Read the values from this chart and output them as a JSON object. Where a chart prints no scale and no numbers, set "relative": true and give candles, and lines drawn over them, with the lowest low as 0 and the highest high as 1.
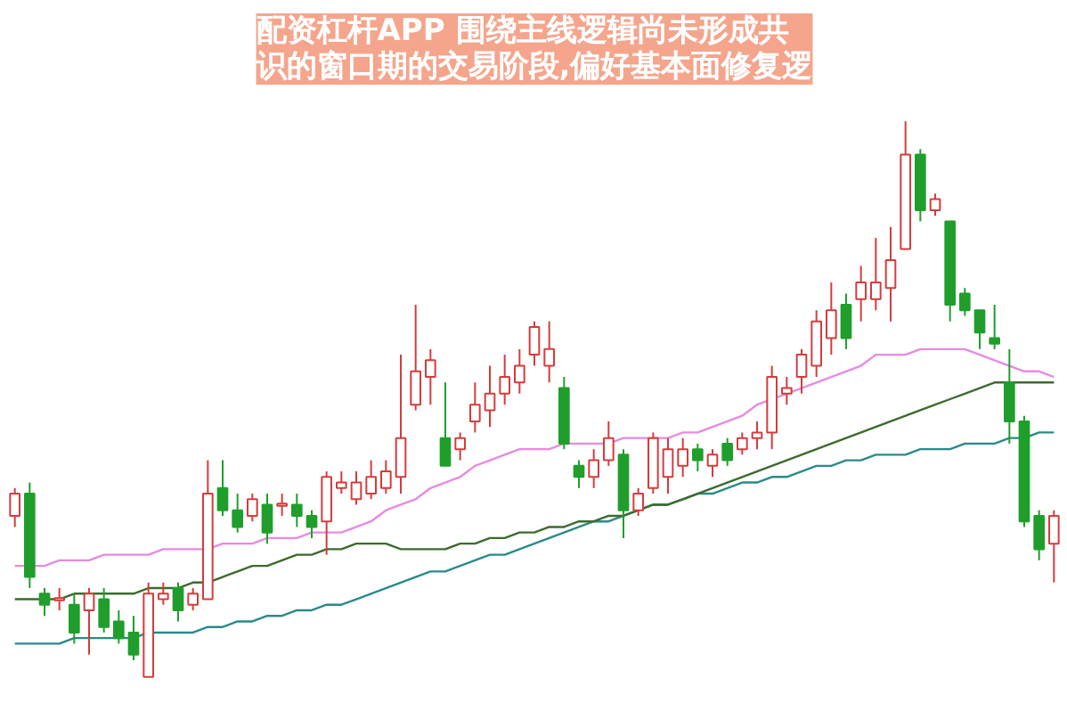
{
  "chart_data": {
    "type": "candlestick",
    "title": "配资杠杆APP 围绕主线逻辑尚未形成共识的窗口期的交易阶段,偏好基本面修复逻",
    "relative": true,
    "categories": [
      null,
      null,
      null,
      null,
      null,
      null,
      null,
      null,
      null,
      null,
      null,
      null,
      null,
      null,
      null,
      null,
      null,
      null,
      null,
      null,
      null,
      null,
      null,
      null,
      null,
      null,
      null,
      null,
      null,
      null,
      null,
      null,
      null,
      null,
      null,
      null,
      null,
      null,
      null,
      null,
      null,
      null,
      null,
      null,
      null,
      null,
      null,
      null,
      null,
      null,
      null,
      null,
      null,
      null,
      null,
      null,
      null,
      null,
      null,
      null,
      null,
      null,
      null,
      null,
      null,
      null,
      null,
      null,
      null,
      null,
      null
    ],
    "ohlc": [
      [
        0.29,
        0.34,
        0.27,
        0.33
      ],
      [
        0.33,
        0.35,
        0.16,
        0.18
      ],
      [
        0.15,
        0.16,
        0.11,
        0.13
      ],
      [
        0.14,
        0.16,
        0.12,
        0.14
      ],
      [
        0.13,
        0.15,
        0.06,
        0.08
      ],
      [
        0.12,
        0.16,
        0.04,
        0.15
      ],
      [
        0.14,
        0.16,
        0.08,
        0.09
      ],
      [
        0.1,
        0.12,
        0.06,
        0.07
      ],
      [
        0.08,
        0.11,
        0.03,
        0.04
      ],
      [
        0,
        0.17,
        0,
        0.15
      ],
      [
        0.14,
        0.17,
        0.13,
        0.15
      ],
      [
        0.16,
        0.17,
        0.1,
        0.12
      ],
      [
        0.13,
        0.16,
        0.12,
        0.15
      ],
      [
        0.14,
        0.39,
        0.14,
        0.33
      ],
      [
        0.34,
        0.39,
        0.29,
        0.3
      ],
      [
        0.3,
        0.33,
        0.26,
        0.27
      ],
      [
        0.29,
        0.33,
        0.28,
        0.32
      ],
      [
        0.31,
        0.33,
        0.24,
        0.26
      ],
      [
        0.31,
        0.33,
        0.29,
        0.31
      ],
      [
        0.31,
        0.33,
        0.27,
        0.29
      ],
      [
        0.29,
        0.3,
        0.25,
        0.27
      ],
      [
        0.28,
        0.37,
        0.22,
        0.36
      ],
      [
        0.34,
        0.37,
        0.33,
        0.35
      ],
      [
        0.32,
        0.37,
        0.31,
        0.35
      ],
      [
        0.33,
        0.39,
        0.32,
        0.36
      ],
      [
        0.34,
        0.39,
        0.33,
        0.37
      ],
      [
        0.36,
        0.58,
        0.33,
        0.43
      ],
      [
        0.49,
        0.67,
        0.48,
        0.55
      ],
      [
        0.54,
        0.59,
        0.49,
        0.57
      ],
      [
        0.43,
        0.53,
        0.38,
        0.38
      ],
      [
        0.41,
        0.44,
        0.39,
        0.43
      ],
      [
        0.46,
        0.53,
        0.44,
        0.49
      ],
      [
        0.48,
        0.56,
        0.45,
        0.51
      ],
      [
        0.51,
        0.58,
        0.49,
        0.54
      ],
      [
        0.53,
        0.59,
        0.51,
        0.56
      ],
      [
        0.58,
        0.64,
        0.56,
        0.63
      ],
      [
        0.56,
        0.64,
        0.53,
        0.59
      ],
      [
        0.52,
        0.54,
        0.41,
        0.42
      ],
      [
        0.38,
        0.39,
        0.34,
        0.36
      ],
      [
        0.36,
        0.41,
        0.34,
        0.39
      ],
      [
        0.39,
        0.46,
        0.38,
        0.43
      ],
      [
        0.4,
        0.41,
        0.25,
        0.3
      ],
      [
        0.3,
        0.34,
        0.29,
        0.33
      ],
      [
        0.34,
        0.44,
        0.33,
        0.43
      ],
      [
        0.36,
        0.43,
        0.33,
        0.41
      ],
      [
        0.38,
        0.43,
        0.36,
        0.41
      ],
      [
        0.41,
        0.42,
        0.37,
        0.39
      ],
      [
        0.38,
        0.41,
        0.36,
        0.4
      ],
      [
        0.42,
        0.43,
        0.38,
        0.39
      ],
      [
        0.41,
        0.44,
        0.4,
        0.43
      ],
      [
        0.43,
        0.46,
        0.41,
        0.44
      ],
      [
        0.44,
        0.56,
        0.41,
        0.54
      ],
      [
        0.51,
        0.54,
        0.49,
        0.52
      ],
      [
        0.54,
        0.59,
        0.51,
        0.58
      ],
      [
        0.56,
        0.66,
        0.54,
        0.64
      ],
      [
        0.61,
        0.71,
        0.58,
        0.66
      ],
      [
        0.67,
        0.69,
        0.59,
        0.61
      ],
      [
        0.68,
        0.74,
        0.64,
        0.71
      ],
      [
        0.68,
        0.79,
        0.66,
        0.71
      ],
      [
        0.7,
        0.81,
        0.64,
        0.75
      ],
      [
        0.77,
        1,
        0.77,
        0.94
      ],
      [
        0.94,
        0.95,
        0.82,
        0.84
      ],
      [
        0.84,
        0.87,
        0.83,
        0.86
      ],
      [
        0.82,
        0.82,
        0.64,
        0.67
      ],
      [
        0.69,
        0.7,
        0.65,
        0.66
      ],
      [
        0.66,
        0.66,
        0.59,
        0.62
      ],
      [
        0.61,
        0.67,
        0.59,
        0.6
      ],
      [
        0.53,
        0.59,
        0.42,
        0.46
      ],
      [
        0.46,
        0.47,
        0.27,
        0.28
      ],
      [
        0.29,
        0.3,
        0.21,
        0.23
      ],
      [
        0.24,
        0.3,
        0.17,
        0.29
      ]
    ],
    "colors": [
      "#d43c3c",
      "#1f9e2c",
      "#1f9e2c",
      "#d43c3c",
      "#1f9e2c",
      "#d43c3c",
      "#1f9e2c",
      "#1f9e2c",
      "#1f9e2c",
      "#d43c3c",
      "#d43c3c",
      "#1f9e2c",
      "#d43c3c",
      "#d43c3c",
      "#1f9e2c",
      "#1f9e2c",
      "#d43c3c",
      "#1f9e2c",
      "#d43c3c",
      "#1f9e2c",
      "#1f9e2c",
      "#d43c3c",
      "#d43c3c",
      "#d43c3c",
      "#d43c3c",
      "#d43c3c",
      "#d43c3c",
      "#d43c3c",
      "#d43c3c",
      "#1f9e2c",
      "#d43c3c",
      "#d43c3c",
      "#d43c3c",
      "#d43c3c",
      "#d43c3c",
      "#d43c3c",
      "#d43c3c",
      "#1f9e2c",
      "#1f9e2c",
      "#d43c3c",
      "#d43c3c",
      "#1f9e2c",
      "#d43c3c",
      "#d43c3c",
      "#d43c3c",
      "#d43c3c",
      "#1f9e2c",
      "#d43c3c",
      "#1f9e2c",
      "#d43c3c",
      "#d43c3c",
      "#d43c3c",
      "#d43c3c",
      "#d43c3c",
      "#d43c3c",
      "#d43c3c",
      "#1f9e2c",
      "#d43c3c",
      "#d43c3c",
      "#d43c3c",
      "#d43c3c",
      "#1f9e2c",
      "#d43c3c",
      "#1f9e2c",
      "#1f9e2c",
      "#1f9e2c",
      "#1f9e2c",
      "#1f9e2c",
      "#1f9e2c",
      "#1f9e2c",
      "#d43c3c"
    ],
    "series": [
      {
        "type": "line",
        "color": "#2a8a8a",
        "values": [
          0.06,
          0.06,
          0.06,
          0.06,
          0.07,
          0.07,
          0.07,
          0.07,
          0.07,
          0.08,
          0.08,
          0.08,
          0.08,
          0.09,
          0.09,
          0.1,
          0.1,
          0.11,
          0.11,
          0.12,
          0.12,
          0.13,
          0.13,
          0.14,
          0.15,
          0.16,
          0.17,
          0.18,
          0.19,
          0.19,
          0.2,
          0.21,
          0.22,
          0.22,
          0.23,
          0.24,
          0.25,
          0.26,
          0.27,
          0.28,
          0.28,
          0.29,
          0.3,
          0.31,
          0.31,
          0.32,
          0.33,
          0.33,
          0.34,
          0.35,
          0.35,
          0.36,
          0.36,
          0.37,
          0.38,
          0.38,
          0.39,
          0.39,
          0.4,
          0.4,
          0.4,
          0.41,
          0.41,
          0.41,
          0.42,
          0.42,
          0.42,
          0.43,
          0.43,
          0.44,
          0.44
        ]
      },
      {
        "type": "line",
        "color": "#e88ae0",
        "values": [
          0.2,
          0.2,
          0.2,
          0.21,
          0.21,
          0.21,
          0.22,
          0.22,
          0.22,
          0.22,
          0.23,
          0.23,
          0.23,
          0.23,
          0.24,
          0.24,
          0.24,
          0.25,
          0.25,
          0.25,
          0.26,
          0.26,
          0.26,
          0.27,
          0.28,
          0.3,
          0.31,
          0.32,
          0.34,
          0.35,
          0.36,
          0.38,
          0.39,
          0.4,
          0.41,
          0.41,
          0.41,
          0.42,
          0.42,
          0.42,
          0.42,
          0.43,
          0.43,
          0.43,
          0.43,
          0.44,
          0.44,
          0.45,
          0.46,
          0.47,
          0.49,
          0.5,
          0.51,
          0.52,
          0.53,
          0.54,
          0.55,
          0.56,
          0.58,
          0.58,
          0.58,
          0.59,
          0.59,
          0.59,
          0.59,
          0.58,
          0.57,
          0.56,
          0.55,
          0.55,
          0.54
        ]
      },
      {
        "type": "line",
        "color": "#3d6b2e",
        "values": [
          0.14,
          0.14,
          0.14,
          0.14,
          0.15,
          0.15,
          0.15,
          0.15,
          0.15,
          0.16,
          0.16,
          0.16,
          0.17,
          0.17,
          0.18,
          0.19,
          0.2,
          0.2,
          0.21,
          0.22,
          0.22,
          0.23,
          0.23,
          0.24,
          0.24,
          0.24,
          0.23,
          0.23,
          0.23,
          0.23,
          0.24,
          0.24,
          0.25,
          0.25,
          0.26,
          0.26,
          0.27,
          0.27,
          0.28,
          0.28,
          0.29,
          0.29,
          0.3,
          0.31,
          0.31,
          0.32,
          0.33,
          0.34,
          0.35,
          0.36,
          0.37,
          0.38,
          0.39,
          0.4,
          0.41,
          0.42,
          0.43,
          0.44,
          0.45,
          0.46,
          0.47,
          0.48,
          0.49,
          0.5,
          0.51,
          0.52,
          0.53,
          0.53,
          0.53,
          0.53,
          0.53
        ]
      }
    ]
  }
}
